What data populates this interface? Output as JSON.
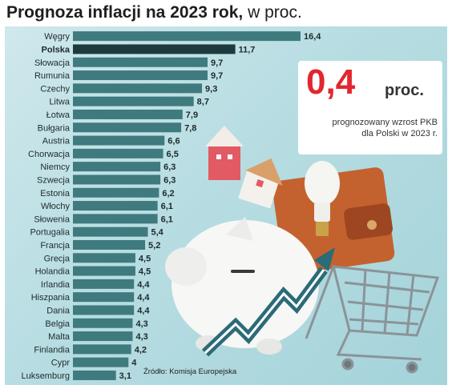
{
  "header": {
    "title": "Prognoza inflacji na 2023 rok,",
    "title_suffix": " w proc."
  },
  "kpi": {
    "value": "0,4",
    "unit": "proc.",
    "description_line1": "prognozowany wzrost PKB",
    "description_line2": "dla Polski w 2023 r."
  },
  "source": "Źródło: Komisja Europejska",
  "colors": {
    "bar": "#3e7a7e",
    "bar_highlight": "#1d3b3f",
    "kpi_accent": "#e3262f",
    "background": "#b7dde2"
  },
  "chart_data": {
    "type": "bar",
    "orientation": "horizontal",
    "title": "Prognoza inflacji na 2023 rok, w proc.",
    "categories": [
      "Węgry",
      "Polska",
      "Słowacja",
      "Rumunia",
      "Czechy",
      "Litwa",
      "Łotwa",
      "Bułgaria",
      "Austria",
      "Chorwacja",
      "Niemcy",
      "Szwecja",
      "Estonia",
      "Włochy",
      "Słowenia",
      "Portugalia",
      "Francja",
      "Grecja",
      "Holandia",
      "Irlandia",
      "Hiszpania",
      "Dania",
      "Belgia",
      "Malta",
      "Finlandia",
      "Cypr",
      "Luksemburg"
    ],
    "values": [
      16.4,
      11.7,
      9.7,
      9.7,
      9.3,
      8.7,
      7.9,
      7.8,
      6.6,
      6.5,
      6.3,
      6.3,
      6.2,
      6.1,
      6.1,
      5.4,
      5.2,
      4.5,
      4.5,
      4.4,
      4.4,
      4.4,
      4.3,
      4.3,
      4.2,
      4,
      3.1
    ],
    "value_labels": [
      "16,4",
      "11,7",
      "9,7",
      "9,7",
      "9,3",
      "8,7",
      "7,9",
      "7,8",
      "6,6",
      "6,5",
      "6,3",
      "6,3",
      "6,2",
      "6,1",
      "6,1",
      "5,4",
      "5,2",
      "4,5",
      "4,5",
      "4,4",
      "4,4",
      "4,4",
      "4,3",
      "4,3",
      "4,2",
      "4",
      "3,1"
    ],
    "highlight": "Polska",
    "xlim": [
      0,
      16.4
    ],
    "grid": false,
    "legend": "none"
  }
}
